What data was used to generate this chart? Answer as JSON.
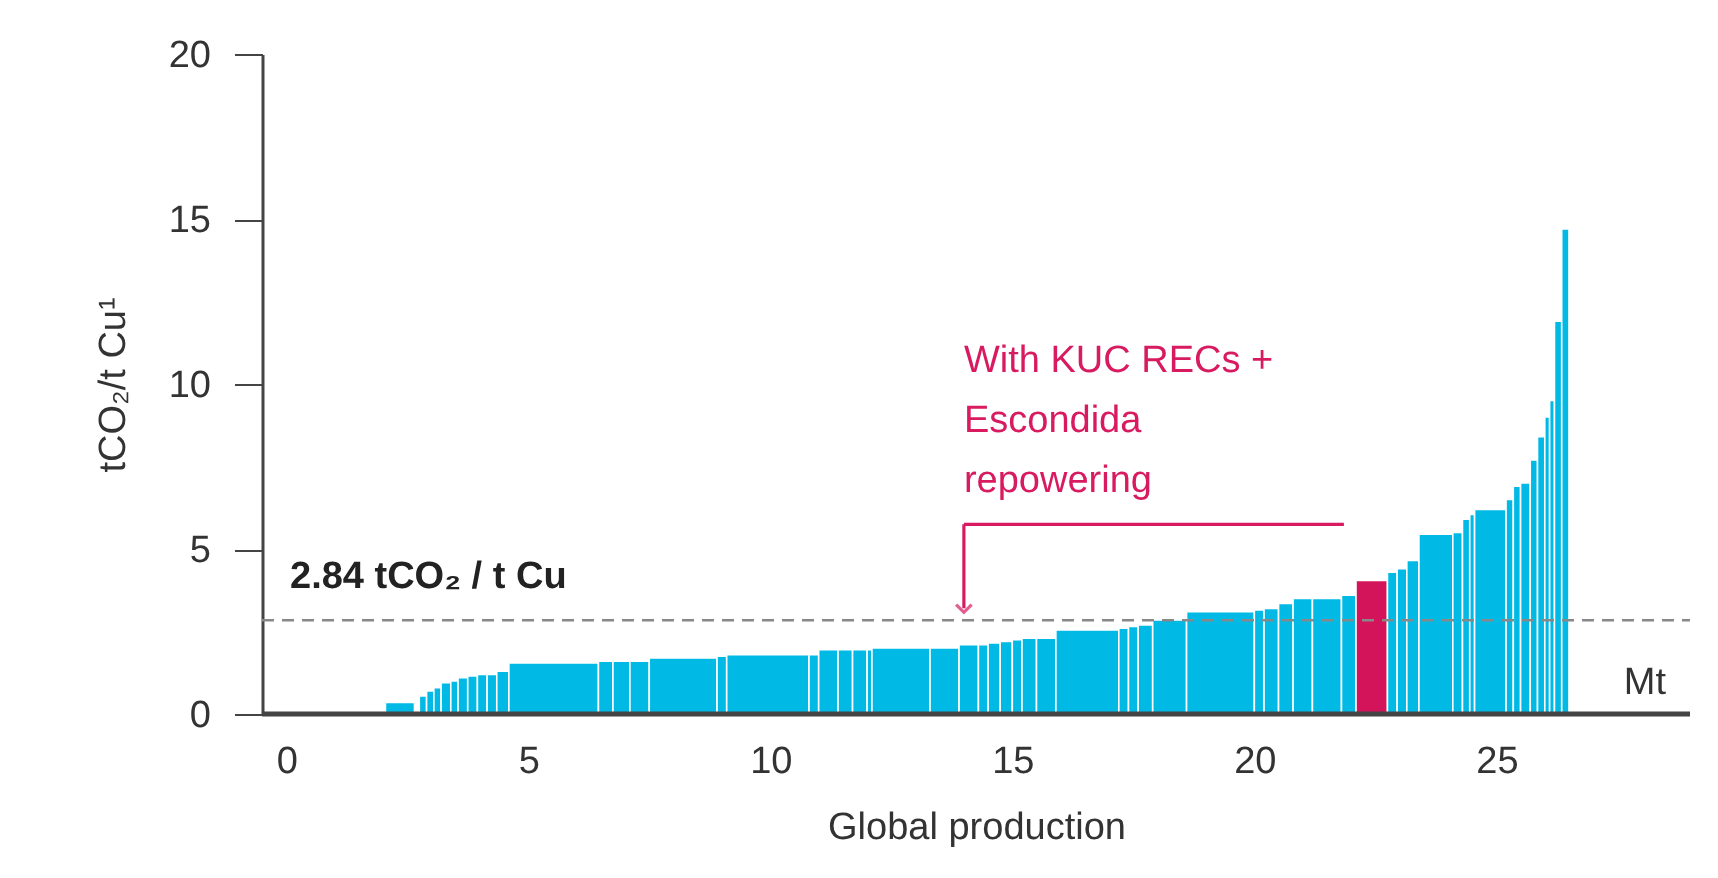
{
  "chart_data": {
    "type": "histogram",
    "xlabel": "Global production",
    "ylabel": "tCO₂/t Cu¹",
    "bins": [
      2.05,
      2.65,
      2.75,
      2.9,
      3.05,
      3.2,
      3.4,
      3.55,
      3.75,
      3.95,
      4.15,
      4.35,
      4.6,
      6.45,
      6.75,
      7.1,
      7.5,
      8.9,
      9.1,
      10.8,
      11.0,
      11.4,
      11.7,
      12.0,
      12.1,
      13.3,
      13.9,
      14.3,
      14.5,
      14.75,
      15.0,
      15.2,
      15.5,
      15.9,
      17.2,
      17.4,
      17.6,
      17.9,
      18.6,
      20.0,
      20.2,
      20.5,
      20.8,
      21.2,
      21.8,
      22.1,
      22.75,
      22.95,
      23.15,
      23.4,
      24.1,
      24.3,
      24.45,
      24.55,
      25.2,
      25.35,
      25.5,
      25.7,
      25.85,
      26.0,
      26.1,
      26.2,
      26.35,
      26.5
    ],
    "values": [
      0.35,
      null,
      0.55,
      0.7,
      0.8,
      0.95,
      1.0,
      1.1,
      1.15,
      1.2,
      1.2,
      1.3,
      1.55,
      1.6,
      1.6,
      1.6,
      1.7,
      1.75,
      1.8,
      1.8,
      1.95,
      1.95,
      1.95,
      1.95,
      2.0,
      2.0,
      2.1,
      2.1,
      2.15,
      2.2,
      2.25,
      2.3,
      2.3,
      2.55,
      2.6,
      2.65,
      2.7,
      2.85,
      3.1,
      3.15,
      3.2,
      3.35,
      3.5,
      3.5,
      3.6,
      4.05,
      4.3,
      4.4,
      4.65,
      5.45,
      5.5,
      5.9,
      6.05,
      6.2,
      6.5,
      6.9,
      7.0,
      7.7,
      8.4,
      9.0,
      9.5,
      11.9,
      14.7
    ],
    "colors": [
      "#00b9e4",
      "#00b9e4",
      "#00b9e4",
      "#00b9e4",
      "#00b9e4",
      "#00b9e4",
      "#00b9e4",
      "#00b9e4",
      "#00b9e4",
      "#00b9e4",
      "#00b9e4",
      "#00b9e4",
      "#00b9e4",
      "#00b9e4",
      "#00b9e4",
      "#00b9e4",
      "#00b9e4",
      "#00b9e4",
      "#00b9e4",
      "#00b9e4",
      "#00b9e4",
      "#00b9e4",
      "#00b9e4",
      "#00b9e4",
      "#00b9e4",
      "#00b9e4",
      "#00b9e4",
      "#00b9e4",
      "#00b9e4",
      "#00b9e4",
      "#00b9e4",
      "#00b9e4",
      "#00b9e4",
      "#00b9e4",
      "#00b9e4",
      "#00b9e4",
      "#00b9e4",
      "#00b9e4",
      "#00b9e4",
      "#00b9e4",
      "#00b9e4",
      "#00b9e4",
      "#00b9e4",
      "#00b9e4",
      "#00b9e4",
      "#d4145a",
      "#00b9e4",
      "#00b9e4",
      "#00b9e4",
      "#00b9e4",
      "#00b9e4",
      "#00b9e4",
      "#00b9e4",
      "#00b9e4",
      "#00b9e4",
      "#00b9e4",
      "#00b9e4",
      "#00b9e4",
      "#00b9e4",
      "#00b9e4",
      "#00b9e4",
      "#00b9e4",
      "#00b9e4"
    ],
    "xlim": [
      -0.5,
      29
    ],
    "xticks": [
      0,
      5,
      10,
      15,
      20,
      25
    ],
    "ylim": [
      0,
      20
    ],
    "yticks": [
      0,
      5,
      10,
      15,
      20
    ],
    "grid": false,
    "ref_lines": [
      {
        "axis": "y",
        "value": 2.84,
        "label": "2.84 tCO₂ / t Cu",
        "color": "#888888",
        "line_style": "dashed"
      }
    ],
    "annotations": [
      {
        "text": "With KUC RECs + Escondida repowering",
        "x": 14,
        "y": 2.84
      },
      "Mt"
    ]
  }
}
